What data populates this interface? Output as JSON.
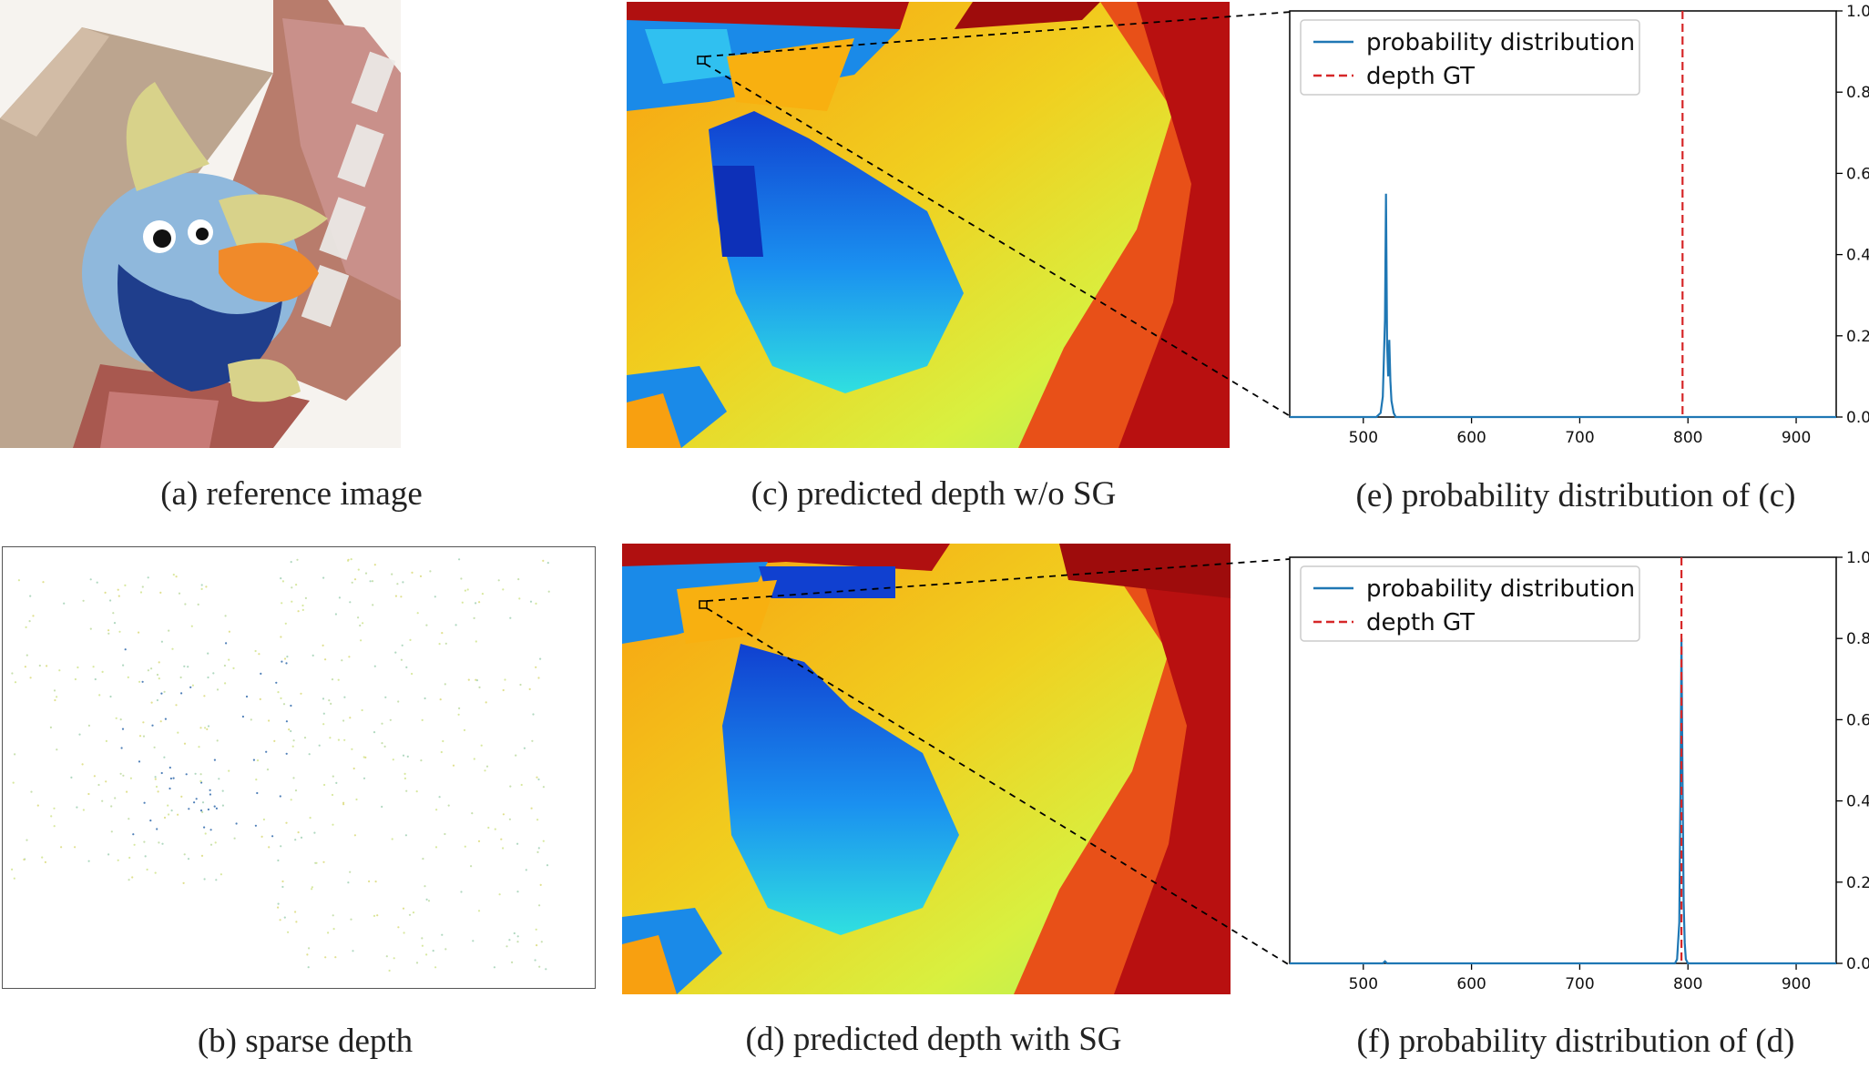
{
  "captions": {
    "a": "(a) reference image",
    "b": "(b) sparse depth",
    "c": "(c) predicted depth w/o SG",
    "d": "(d) predicted depth with SG",
    "e": "(e) probability distribution of (c)",
    "f": "(f) probability distribution of (d)"
  },
  "colors": {
    "series": "#1f77b4",
    "gt": "#d62728",
    "depth_blue": "#1060e0",
    "depth_cyan": "#30e0e0",
    "depth_yellow": "#f0e020",
    "depth_orange": "#f8a010",
    "depth_red": "#b01010"
  },
  "chart_data": [
    {
      "type": "line",
      "panel": "e",
      "x_ticks": [
        "500",
        "600",
        "700",
        "800",
        "900"
      ],
      "y_ticks": [
        "0.0",
        "0.2",
        "0.4",
        "0.6",
        "0.8",
        "1.0"
      ],
      "xlim": [
        432,
        937
      ],
      "ylim": [
        0,
        1
      ],
      "y_axis_side": "right",
      "legend_position": "top-left",
      "series": [
        {
          "name": "probability distribution",
          "x": [
            432,
            500,
            512,
            516,
            518,
            520,
            521,
            522,
            523,
            524,
            525,
            526,
            528,
            530,
            540,
            600,
            700,
            800,
            937
          ],
          "values": [
            0,
            0,
            0,
            0.01,
            0.05,
            0.24,
            0.55,
            0.18,
            0.1,
            0.19,
            0.09,
            0.04,
            0.01,
            0,
            0,
            0,
            0,
            0,
            0
          ]
        },
        {
          "name": "depth GT",
          "style": "dashed-vertical",
          "x_value": 795
        }
      ]
    },
    {
      "type": "line",
      "panel": "f",
      "x_ticks": [
        "500",
        "600",
        "700",
        "800",
        "900"
      ],
      "y_ticks": [
        "0.0",
        "0.2",
        "0.4",
        "0.6",
        "0.8",
        "1.0"
      ],
      "xlim": [
        432,
        937
      ],
      "ylim": [
        0,
        1
      ],
      "y_axis_side": "right",
      "legend_position": "top-left",
      "series": [
        {
          "name": "probability distribution",
          "x": [
            432,
            518,
            520,
            522,
            700,
            788,
            790,
            792,
            793,
            794,
            795,
            796,
            797,
            798,
            800,
            937
          ],
          "values": [
            0,
            0,
            0.005,
            0,
            0,
            0,
            0.01,
            0.1,
            0.4,
            0.8,
            0.45,
            0.15,
            0.05,
            0.01,
            0,
            0
          ]
        },
        {
          "name": "depth GT",
          "style": "dashed-vertical",
          "x_value": 794
        }
      ]
    }
  ]
}
